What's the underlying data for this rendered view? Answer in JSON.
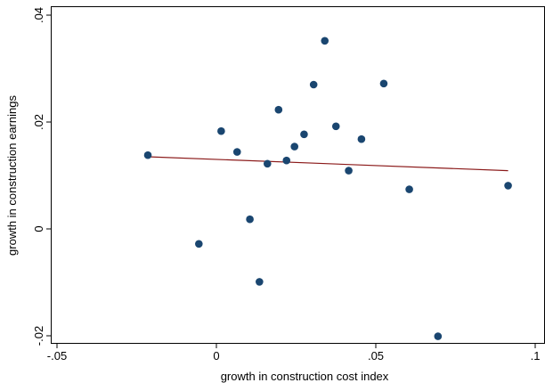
{
  "chart_data": {
    "type": "scatter",
    "title": "",
    "xlabel": "growth in construction cost index",
    "ylabel": "growth in construction earnings",
    "xlim": [
      -0.05,
      0.1
    ],
    "ylim": [
      -0.02,
      0.04
    ],
    "x_ticks": [
      {
        "value": -0.05,
        "label": "-.05"
      },
      {
        "value": 0,
        "label": "0"
      },
      {
        "value": 0.05,
        "label": ".05"
      },
      {
        "value": 0.1,
        "label": ".1"
      }
    ],
    "y_ticks": [
      {
        "value": -0.02,
        "label": "-.02"
      },
      {
        "value": 0,
        "label": "0"
      },
      {
        "value": 0.02,
        "label": ".02"
      },
      {
        "value": 0.04,
        "label": ".04"
      }
    ],
    "grid": false,
    "series": [
      {
        "kind": "points",
        "color": "#1a4670",
        "points": [
          {
            "x": -0.0215,
            "y": 0.0138
          },
          {
            "x": -0.0055,
            "y": -0.0028
          },
          {
            "x": 0.0015,
            "y": 0.0183
          },
          {
            "x": 0.0065,
            "y": 0.0144
          },
          {
            "x": 0.0105,
            "y": 0.0018
          },
          {
            "x": 0.0135,
            "y": -0.0099
          },
          {
            "x": 0.016,
            "y": 0.0122
          },
          {
            "x": 0.0195,
            "y": 0.0223
          },
          {
            "x": 0.022,
            "y": 0.0128
          },
          {
            "x": 0.0245,
            "y": 0.0154
          },
          {
            "x": 0.0275,
            "y": 0.0177
          },
          {
            "x": 0.0305,
            "y": 0.027
          },
          {
            "x": 0.034,
            "y": 0.0352
          },
          {
            "x": 0.0375,
            "y": 0.0192
          },
          {
            "x": 0.0415,
            "y": 0.0109
          },
          {
            "x": 0.0455,
            "y": 0.0168
          },
          {
            "x": 0.0525,
            "y": 0.0272
          },
          {
            "x": 0.0605,
            "y": 0.0074
          },
          {
            "x": 0.0695,
            "y": -0.0201
          },
          {
            "x": 0.0915,
            "y": 0.0081
          }
        ]
      },
      {
        "kind": "fitted-line",
        "color": "#8b1a1a",
        "points": [
          {
            "x": -0.0215,
            "y": 0.0135
          },
          {
            "x": 0.0915,
            "y": 0.0109
          }
        ]
      }
    ]
  }
}
